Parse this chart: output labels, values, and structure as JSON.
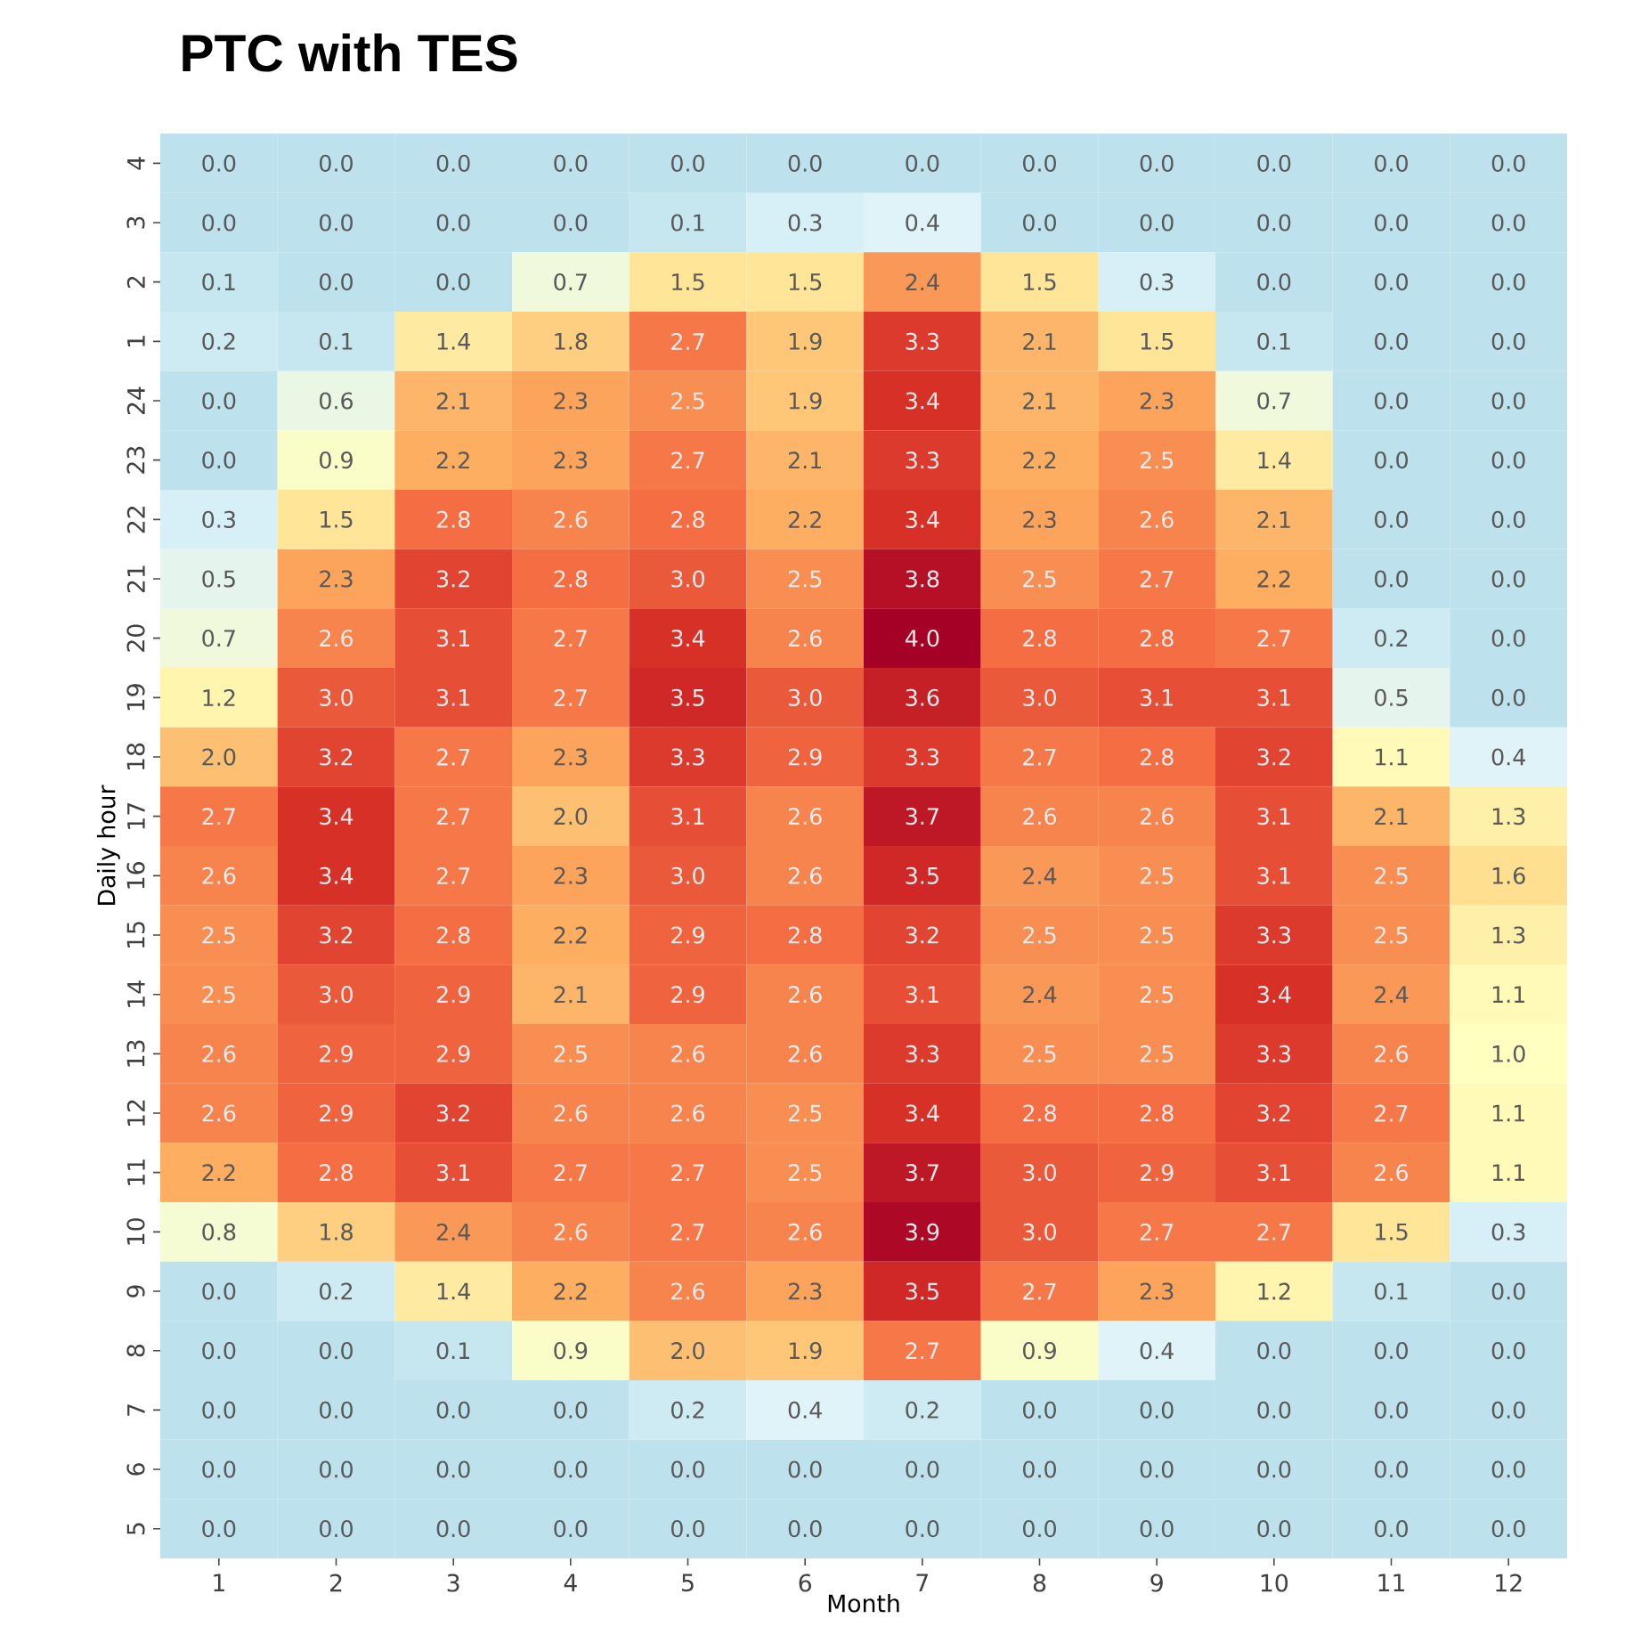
{
  "chart_data": {
    "type": "heatmap",
    "title": "PTC with TES",
    "xlabel": "Month",
    "ylabel": "Daily hour",
    "categories": [
      "1",
      "2",
      "3",
      "4",
      "5",
      "6",
      "7",
      "8",
      "9",
      "10",
      "11",
      "12"
    ],
    "y_categories": [
      "4",
      "3",
      "2",
      "1",
      "24",
      "23",
      "22",
      "21",
      "20",
      "19",
      "18",
      "17",
      "16",
      "15",
      "14",
      "13",
      "12",
      "11",
      "10",
      "9",
      "8",
      "7",
      "6",
      "5"
    ],
    "cells": [
      [
        0.0,
        0.0,
        0.0,
        0.0,
        0.0,
        0.0,
        0.0,
        0.0,
        0.0,
        0.0,
        0.0,
        0.0
      ],
      [
        0.0,
        0.0,
        0.0,
        0.0,
        0.1,
        0.3,
        0.4,
        0.0,
        0.0,
        0.0,
        0.0,
        0.0
      ],
      [
        0.1,
        0.0,
        0.0,
        0.7,
        1.5,
        1.5,
        2.4,
        1.5,
        0.3,
        0.0,
        0.0,
        0.0
      ],
      [
        0.2,
        0.1,
        1.4,
        1.8,
        2.7,
        1.9,
        3.3,
        2.1,
        1.5,
        0.1,
        0.0,
        0.0
      ],
      [
        0.0,
        0.6,
        2.1,
        2.3,
        2.5,
        1.9,
        3.4,
        2.1,
        2.3,
        0.7,
        0.0,
        0.0
      ],
      [
        0.0,
        0.9,
        2.2,
        2.3,
        2.7,
        2.1,
        3.3,
        2.2,
        2.5,
        1.4,
        0.0,
        0.0
      ],
      [
        0.3,
        1.5,
        2.8,
        2.6,
        2.8,
        2.2,
        3.4,
        2.3,
        2.6,
        2.1,
        0.0,
        0.0
      ],
      [
        0.5,
        2.3,
        3.2,
        2.8,
        3.0,
        2.5,
        3.8,
        2.5,
        2.7,
        2.2,
        0.0,
        0.0
      ],
      [
        0.7,
        2.6,
        3.1,
        2.7,
        3.4,
        2.6,
        4.0,
        2.8,
        2.8,
        2.7,
        0.2,
        0.0
      ],
      [
        1.2,
        3.0,
        3.1,
        2.7,
        3.5,
        3.0,
        3.6,
        3.0,
        3.1,
        3.1,
        0.5,
        0.0
      ],
      [
        2.0,
        3.2,
        2.7,
        2.3,
        3.3,
        2.9,
        3.3,
        2.7,
        2.8,
        3.2,
        1.1,
        0.4
      ],
      [
        2.7,
        3.4,
        2.7,
        2.0,
        3.1,
        2.6,
        3.7,
        2.6,
        2.6,
        3.1,
        2.1,
        1.3
      ],
      [
        2.6,
        3.4,
        2.7,
        2.3,
        3.0,
        2.6,
        3.5,
        2.4,
        2.5,
        3.1,
        2.5,
        1.6
      ],
      [
        2.5,
        3.2,
        2.8,
        2.2,
        2.9,
        2.8,
        3.2,
        2.5,
        2.5,
        3.3,
        2.5,
        1.3
      ],
      [
        2.5,
        3.0,
        2.9,
        2.1,
        2.9,
        2.6,
        3.1,
        2.4,
        2.5,
        3.4,
        2.4,
        1.1
      ],
      [
        2.6,
        2.9,
        2.9,
        2.5,
        2.6,
        2.6,
        3.3,
        2.5,
        2.5,
        3.3,
        2.6,
        1.0
      ],
      [
        2.6,
        2.9,
        3.2,
        2.6,
        2.6,
        2.5,
        3.4,
        2.8,
        2.8,
        3.2,
        2.7,
        1.1
      ],
      [
        2.2,
        2.8,
        3.1,
        2.7,
        2.7,
        2.5,
        3.7,
        3.0,
        2.9,
        3.1,
        2.6,
        1.1
      ],
      [
        0.8,
        1.8,
        2.4,
        2.6,
        2.7,
        2.6,
        3.9,
        3.0,
        2.7,
        2.7,
        1.5,
        0.3
      ],
      [
        0.0,
        0.2,
        1.4,
        2.2,
        2.6,
        2.3,
        3.5,
        2.7,
        2.3,
        1.2,
        0.1,
        0.0
      ],
      [
        0.0,
        0.0,
        0.1,
        0.9,
        2.0,
        1.9,
        2.7,
        0.9,
        0.4,
        0.0,
        0.0,
        0.0
      ],
      [
        0.0,
        0.0,
        0.0,
        0.0,
        0.2,
        0.4,
        0.2,
        0.0,
        0.0,
        0.0,
        0.0,
        0.0
      ],
      [
        0.0,
        0.0,
        0.0,
        0.0,
        0.0,
        0.0,
        0.0,
        0.0,
        0.0,
        0.0,
        0.0,
        0.0
      ],
      [
        0.0,
        0.0,
        0.0,
        0.0,
        0.0,
        0.0,
        0.0,
        0.0,
        0.0,
        0.0,
        0.0,
        0.0
      ]
    ],
    "cell_labels": [
      [
        "0.0",
        "0.0",
        "0.0",
        "0.0",
        "0.0",
        "0.0",
        "0.0",
        "0.0",
        "0.0",
        "0.0",
        "0.0",
        "0.0"
      ],
      [
        "0.0",
        "0.0",
        "0.0",
        "0.0",
        "0.1",
        "0.3",
        "0.4",
        "0.0",
        "0.0",
        "0.0",
        "0.0",
        "0.0"
      ],
      [
        "0.1",
        "0.0",
        "0.0",
        "0.7",
        "1.5",
        "1.5",
        "2.4",
        "1.5",
        "0.3",
        "0.0",
        "0.0",
        "0.0"
      ],
      [
        "0.2",
        "0.1",
        "1.4",
        "1.8",
        "2.7",
        "1.9",
        "3.3",
        "2.1",
        "1.5",
        "0.1",
        "0.0",
        "0.0"
      ],
      [
        "0.0",
        "0.6",
        "2.1",
        "2.3",
        "2.5",
        "1.9",
        "3.4",
        "2.1",
        "2.3",
        "0.7",
        "0.0",
        "0.0"
      ],
      [
        "0.0",
        "0.9",
        "2.2",
        "2.3",
        "2.7",
        "2.1",
        "3.3",
        "2.2",
        "2.5",
        "1.4",
        "0.0",
        "0.0"
      ],
      [
        "0.3",
        "1.5",
        "2.8",
        "2.6",
        "2.8",
        "2.2",
        "3.4",
        "2.3",
        "2.6",
        "2.1",
        "0.0",
        "0.0"
      ],
      [
        "0.5",
        "2.3",
        "3.2",
        "2.8",
        "3.0",
        "2.5",
        "3.8",
        "2.5",
        "2.7",
        "2.2",
        "0.0",
        "0.0"
      ],
      [
        "0.7",
        "2.6",
        "3.1",
        "2.7",
        "3.4",
        "2.6",
        "4.0",
        "2.8",
        "2.8",
        "2.7",
        "0.2",
        "0.0"
      ],
      [
        "1.2",
        "3.0",
        "3.1",
        "2.7",
        "3.5",
        "3.0",
        "3.6",
        "3.0",
        "3.1",
        "3.1",
        "0.5",
        "0.0"
      ],
      [
        "2.0",
        "3.2",
        "2.7",
        "2.3",
        "3.3",
        "2.9",
        "3.3",
        "2.7",
        "2.8",
        "3.2",
        "1.1",
        "0.4"
      ],
      [
        "2.7",
        "3.4",
        "2.7",
        "2.0",
        "3.1",
        "2.6",
        "3.7",
        "2.6",
        "2.6",
        "3.1",
        "2.1",
        "1.3"
      ],
      [
        "2.6",
        "3.4",
        "2.7",
        "2.3",
        "3.0",
        "2.6",
        "3.5",
        "2.4",
        "2.5",
        "3.1",
        "2.5",
        "1.6"
      ],
      [
        "2.5",
        "3.2",
        "2.8",
        "2.2",
        "2.9",
        "2.8",
        "3.2",
        "2.5",
        "2.5",
        "3.3",
        "2.5",
        "1.3"
      ],
      [
        "2.5",
        "3.0",
        "2.9",
        "2.1",
        "2.9",
        "2.6",
        "3.1",
        "2.4",
        "2.5",
        "3.4",
        "2.4",
        "1.1"
      ],
      [
        "2.6",
        "2.9",
        "2.9",
        "2.5",
        "2.6",
        "2.6",
        "3.3",
        "2.5",
        "2.5",
        "3.3",
        "2.6",
        "1.0"
      ],
      [
        "2.6",
        "2.9",
        "3.2",
        "2.6",
        "2.6",
        "2.5",
        "3.4",
        "2.8",
        "2.8",
        "3.2",
        "2.7",
        "1.1"
      ],
      [
        "2.2",
        "2.8",
        "3.1",
        "2.7",
        "2.7",
        "2.5",
        "3.7",
        "3.0",
        "2.9",
        "3.1",
        "2.6",
        "1.1"
      ],
      [
        "0.8",
        "1.8",
        "2.4",
        "2.6",
        "2.7",
        "2.6",
        "3.9",
        "3.0",
        "2.7",
        "2.7",
        "1.5",
        "0.3"
      ],
      [
        "0.0",
        "0.2",
        "1.4",
        "2.2",
        "2.6",
        "2.3",
        "3.5",
        "2.7",
        "2.3",
        "1.2",
        "0.1",
        "0.0"
      ],
      [
        "0.0",
        "0.0",
        "0.1",
        "0.9",
        "2.0",
        "1.9",
        "2.7",
        "0.9",
        "0.4",
        "0.0",
        "0.0",
        "0.0"
      ],
      [
        "0.0",
        "0.0",
        "0.0",
        "0.0",
        "0.2",
        "0.4",
        "0.2",
        "0.0",
        "0.0",
        "0.0",
        "0.0",
        "0.0"
      ],
      [
        "0.0",
        "0.0",
        "0.0",
        "0.0",
        "0.0",
        "0.0",
        "0.0",
        "0.0",
        "0.0",
        "0.0",
        "0.0",
        "0.0"
      ],
      [
        "0.0",
        "0.0",
        "0.0",
        "0.0",
        "0.0",
        "0.0",
        "0.0",
        "0.0",
        "0.0",
        "0.0",
        "0.0",
        "0.0"
      ]
    ]
  }
}
